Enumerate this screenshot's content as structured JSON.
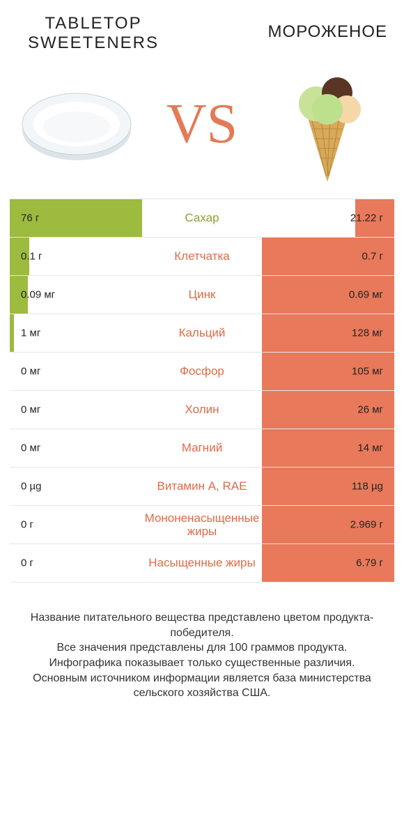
{
  "colors": {
    "green": "#9cbb3f",
    "orange": "#e8795a",
    "vs": "#e47a56",
    "label_green": "#87a536",
    "label_orange": "#e06a47",
    "border": "#e6e6e6"
  },
  "titles": {
    "left": "TABLETOP SWEETENERS",
    "right": "МОРОЖЕНОЕ",
    "vs": "VS"
  },
  "rows": [
    {
      "label": "Сахар",
      "left_val": "76 г",
      "right_val": "21.22 г",
      "winner": "left",
      "left_w": 190,
      "right_w": 56
    },
    {
      "label": "Клетчатка",
      "left_val": "0.1 г",
      "right_val": "0.7 г",
      "winner": "right",
      "left_w": 28,
      "right_w": 190
    },
    {
      "label": "Цинк",
      "left_val": "0.09 мг",
      "right_val": "0.69 мг",
      "winner": "right",
      "left_w": 26,
      "right_w": 190
    },
    {
      "label": "Кальций",
      "left_val": "1 мг",
      "right_val": "128 мг",
      "winner": "right",
      "left_w": 6,
      "right_w": 190
    },
    {
      "label": "Фосфор",
      "left_val": "0 мг",
      "right_val": "105 мг",
      "winner": "right",
      "left_w": 0,
      "right_w": 190
    },
    {
      "label": "Холин",
      "left_val": "0 мг",
      "right_val": "26 мг",
      "winner": "right",
      "left_w": 0,
      "right_w": 190
    },
    {
      "label": "Магний",
      "left_val": "0 мг",
      "right_val": "14 мг",
      "winner": "right",
      "left_w": 0,
      "right_w": 190
    },
    {
      "label": "Витамин A, RAE",
      "left_val": "0 µg",
      "right_val": "118 µg",
      "winner": "right",
      "left_w": 0,
      "right_w": 190
    },
    {
      "label": "Мононенасыщенные жиры",
      "left_val": "0 г",
      "right_val": "2.969 г",
      "winner": "right",
      "left_w": 0,
      "right_w": 190
    },
    {
      "label": "Насыщенные жиры",
      "left_val": "0 г",
      "right_val": "6.79 г",
      "winner": "right",
      "left_w": 0,
      "right_w": 190
    }
  ],
  "footnote": "Название питательного вещества представлено цветом продукта-победителя.\nВсе значения представлены для 100 граммов продукта.\nИнфографика показывает только существенные различия.\nОсновным источником информации является база министерства сельского хозяйства США."
}
